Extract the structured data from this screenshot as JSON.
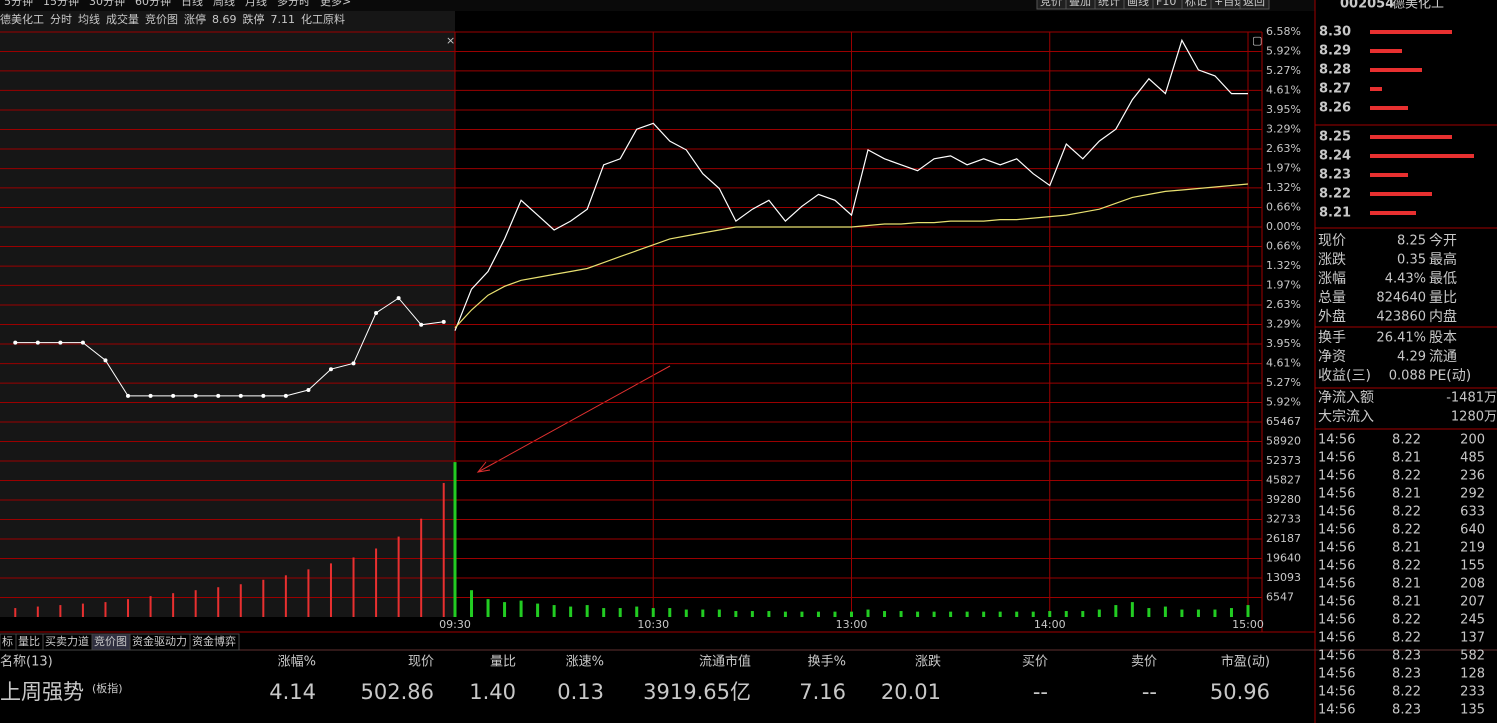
{
  "toolbar": {
    "periods": [
      "5分钟",
      "15分钟",
      "30分钟",
      "60分钟",
      "日线",
      "周线",
      "月线",
      "多分时",
      "更多>"
    ],
    "buttons": [
      "竞价",
      "叠加",
      "统计",
      "画线",
      "F10",
      "标记",
      "+自选",
      "返回"
    ]
  },
  "header": {
    "name": "德美化工",
    "limit_up_label": "涨停",
    "limit_up": 8.69,
    "limit_down_label": "跌停",
    "limit_down": 7.11,
    "sector": "化工原料"
  },
  "chart_data": {
    "type": "line",
    "x": [
      "09:30",
      "09:35",
      "09:40",
      "09:45",
      "09:50",
      "09:55",
      "10:00",
      "10:05",
      "10:10",
      "10:15",
      "10:20",
      "10:25",
      "10:30",
      "10:35",
      "10:40",
      "10:45",
      "10:50",
      "10:55",
      "11:00",
      "11:05",
      "11:10",
      "11:15",
      "11:20",
      "11:25",
      "11:30",
      "13:05",
      "13:10",
      "13:15",
      "13:20",
      "13:25",
      "13:30",
      "13:35",
      "13:40",
      "13:45",
      "13:50",
      "13:55",
      "14:00",
      "14:05",
      "14:10",
      "14:15",
      "14:20",
      "14:25",
      "14:30",
      "14:35",
      "14:40",
      "14:45",
      "14:50",
      "14:55",
      "15:00"
    ],
    "series": [
      {
        "name": "分时",
        "color": "#ffffff",
        "values": [
          -3.5,
          -2.1,
          -1.5,
          -0.4,
          0.9,
          0.4,
          -0.1,
          0.2,
          0.6,
          2.1,
          2.3,
          3.3,
          3.5,
          2.9,
          2.6,
          1.8,
          1.3,
          0.2,
          0.6,
          0.9,
          0.2,
          0.7,
          1.1,
          0.9,
          0.4,
          2.6,
          2.3,
          2.1,
          1.9,
          2.3,
          2.4,
          2.1,
          2.3,
          2.1,
          2.3,
          1.8,
          1.4,
          2.8,
          2.3,
          2.9,
          3.3,
          4.3,
          5.0,
          4.5,
          6.3,
          5.3,
          5.1,
          4.5,
          4.5
        ]
      },
      {
        "name": "均线",
        "color": "#e8e070",
        "values": [
          -3.4,
          -2.8,
          -2.3,
          -2.0,
          -1.8,
          -1.7,
          -1.6,
          -1.5,
          -1.4,
          -1.2,
          -1.0,
          -0.8,
          -0.6,
          -0.4,
          -0.3,
          -0.2,
          -0.1,
          0.0,
          0.0,
          0.0,
          0.0,
          0.0,
          0.0,
          0.0,
          0.0,
          0.05,
          0.1,
          0.1,
          0.15,
          0.15,
          0.2,
          0.2,
          0.2,
          0.25,
          0.25,
          0.3,
          0.35,
          0.4,
          0.5,
          0.6,
          0.8,
          1.0,
          1.1,
          1.2,
          1.25,
          1.3,
          1.35,
          1.4,
          1.45
        ]
      },
      {
        "name": "成交量",
        "type": "bar",
        "axis": "y2",
        "color": "#22cc22",
        "values": [
          52000,
          9000,
          6000,
          5000,
          5500,
          4500,
          4000,
          3500,
          4000,
          3000,
          3000,
          3500,
          3000,
          3000,
          2500,
          2500,
          2500,
          2000,
          2000,
          2000,
          1800,
          1800,
          1800,
          1800,
          1800,
          2500,
          2000,
          2000,
          1800,
          1800,
          1800,
          1800,
          1800,
          1800,
          1800,
          1800,
          2000,
          2000,
          2000,
          2500,
          4000,
          5000,
          3000,
          3500,
          2500,
          2500,
          2500,
          3000,
          4000
        ]
      }
    ],
    "auction": {
      "name": "竞价图",
      "color": "#ffffff",
      "volume_color": "#e83030",
      "values": [
        -3.9,
        -3.9,
        -3.9,
        -3.9,
        -4.5,
        -5.7,
        -5.7,
        -5.7,
        -5.7,
        -5.7,
        -5.7,
        -5.7,
        -5.7,
        -5.5,
        -4.8,
        -4.6,
        -2.9,
        -2.4,
        -3.3,
        -3.2
      ],
      "volumes": [
        3000,
        3500,
        4000,
        4500,
        5000,
        6000,
        7000,
        8000,
        9000,
        10000,
        11000,
        12500,
        14000,
        16000,
        18000,
        20000,
        23000,
        27000,
        33000,
        45000
      ]
    },
    "xticks": [
      "09:30",
      "10:30",
      "13:00",
      "14:00",
      "15:00"
    ],
    "ylim": [
      -6.58,
      6.58
    ],
    "yticks": [
      {
        "value": 6.58,
        "label": "6.58%"
      },
      {
        "value": 5.92,
        "label": "5.92%"
      },
      {
        "value": 5.27,
        "label": "5.27%"
      },
      {
        "value": 4.61,
        "label": "4.61%"
      },
      {
        "value": 3.95,
        "label": "3.95%"
      },
      {
        "value": 3.29,
        "label": "3.29%"
      },
      {
        "value": 2.63,
        "label": "2.63%"
      },
      {
        "value": 1.97,
        "label": "1.97%"
      },
      {
        "value": 1.32,
        "label": "1.32%"
      },
      {
        "value": 0.66,
        "label": "0.66%"
      },
      {
        "value": 0,
        "label": "0.00%"
      },
      {
        "value": -0.66,
        "label": "0.66%"
      },
      {
        "value": -1.32,
        "label": "1.32%"
      },
      {
        "value": -1.97,
        "label": "1.97%"
      },
      {
        "value": -2.63,
        "label": "2.63%"
      },
      {
        "value": -3.29,
        "label": "3.29%"
      },
      {
        "value": -3.95,
        "label": "3.95%"
      },
      {
        "value": -4.61,
        "label": "4.61%"
      },
      {
        "value": -5.27,
        "label": "5.27%"
      },
      {
        "value": -5.92,
        "label": "5.92%"
      }
    ],
    "y2lim": [
      0,
      65467
    ],
    "y2ticks": [
      65467,
      58920,
      52373,
      45827,
      39280,
      32733,
      26187,
      19640,
      13093,
      6547
    ],
    "grid": true
  },
  "side_panel": {
    "code": "002054",
    "name": "德美化工",
    "asks": [
      {
        "price": "8.30",
        "volume": 82
      },
      {
        "price": "8.29",
        "volume": 32
      },
      {
        "price": "8.28",
        "volume": 52
      },
      {
        "price": "8.27",
        "volume": 12
      },
      {
        "price": "8.26",
        "volume": 38
      }
    ],
    "bids": [
      {
        "price": "8.25",
        "volume": 82
      },
      {
        "price": "8.24",
        "volume": 104
      },
      {
        "price": "8.23",
        "volume": 38
      },
      {
        "price": "8.22",
        "volume": 62
      },
      {
        "price": "8.21",
        "volume": 46
      }
    ],
    "stats": [
      {
        "label": "现价",
        "value": "8.25",
        "color": "#ff4040",
        "label2": "今开"
      },
      {
        "label": "涨跌",
        "value": "0.35",
        "color": "#ff4040",
        "label2": "最高"
      },
      {
        "label": "涨幅",
        "value": "4.43%",
        "color": "#ff4040",
        "label2": "最低"
      },
      {
        "label": "总量",
        "value": "824640",
        "color": "#ffff40",
        "label2": "量比"
      },
      {
        "label": "外盘",
        "value": "423860",
        "color": "#ff4040",
        "label2": "内盘"
      },
      {
        "label": "换手",
        "value": "26.41%",
        "color": "#d0d0d0",
        "label2": "股本"
      },
      {
        "label": "净资",
        "value": "4.29",
        "color": "#d0d0d0",
        "label2": "流通"
      },
      {
        "label": "收益(三)",
        "value": "0.088",
        "color": "#d0d0d0",
        "label2": "PE(动)"
      }
    ],
    "flows": [
      {
        "label": "净流入额",
        "value": "-1481万",
        "color": "#30e030"
      },
      {
        "label": "大宗流入",
        "value": "1280万",
        "color": "#ff4040"
      }
    ],
    "trades": [
      {
        "time": "14:56",
        "price": "8.22",
        "volume": 200,
        "color": "#ffff40"
      },
      {
        "time": "14:56",
        "price": "8.21",
        "volume": 485,
        "color": "#ffff40"
      },
      {
        "time": "14:56",
        "price": "8.22",
        "volume": 236,
        "color": "#ffff40"
      },
      {
        "time": "14:56",
        "price": "8.21",
        "volume": 292,
        "color": "#ffff40"
      },
      {
        "time": "14:56",
        "price": "8.22",
        "volume": 633,
        "color": "#d040ff"
      },
      {
        "time": "14:56",
        "price": "8.22",
        "volume": 640,
        "color": "#d040ff"
      },
      {
        "time": "14:56",
        "price": "8.21",
        "volume": 219,
        "color": "#ffff40"
      },
      {
        "time": "14:56",
        "price": "8.22",
        "volume": 155,
        "color": "#ffff40"
      },
      {
        "time": "14:56",
        "price": "8.21",
        "volume": 208,
        "color": "#ffff40"
      },
      {
        "time": "14:56",
        "price": "8.21",
        "volume": 207,
        "color": "#ffff40"
      },
      {
        "time": "14:56",
        "price": "8.22",
        "volume": 245,
        "color": "#ffff40"
      },
      {
        "time": "14:56",
        "price": "8.22",
        "volume": 137,
        "color": "#ffff40"
      },
      {
        "time": "14:56",
        "price": "8.23",
        "volume": 582,
        "color": "#d040ff"
      },
      {
        "time": "14:56",
        "price": "8.23",
        "volume": 128,
        "color": "#ffff40"
      },
      {
        "time": "14:56",
        "price": "8.22",
        "volume": 233,
        "color": "#ffff40"
      },
      {
        "time": "14:56",
        "price": "8.23",
        "volume": 135,
        "color": "#ffff40"
      }
    ]
  },
  "tabs": [
    "标",
    "量比",
    "买卖力道",
    "竞价图",
    "资金驱动力",
    "资金博弈"
  ],
  "table": {
    "columns": [
      "名称(13)",
      "涨幅%",
      "现价",
      "量比",
      "涨速%",
      "流通市值",
      "换手%",
      "涨跌",
      "买价",
      "卖价",
      "市盈(动)"
    ],
    "rows": [
      {
        "name": "上周强势",
        "tag": "(板指)",
        "cells": [
          "4.14",
          "502.86",
          "1.40",
          "0.13",
          "3919.65亿",
          "7.16",
          "20.01",
          "--",
          "--",
          "50.96"
        ]
      }
    ]
  }
}
